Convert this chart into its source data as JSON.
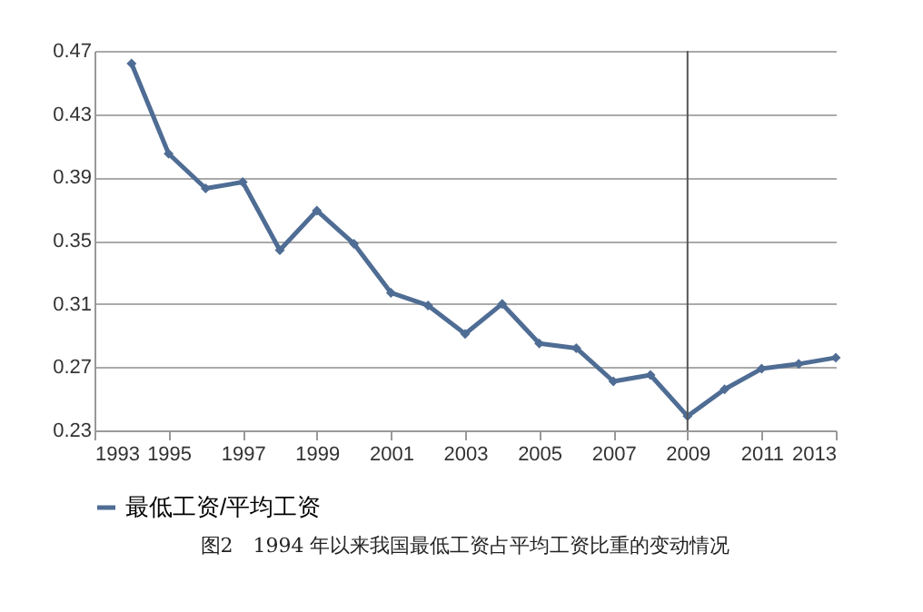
{
  "chart_data": {
    "type": "line",
    "x": [
      1994,
      1995,
      1996,
      1997,
      1998,
      1999,
      2000,
      2001,
      2002,
      2003,
      2004,
      2005,
      2006,
      2007,
      2008,
      2009,
      2010,
      2011,
      2012,
      2013
    ],
    "series": [
      {
        "name": "最低工资/平均工资",
        "color": "#4f6d94",
        "values": [
          0.462,
          0.405,
          0.383,
          0.387,
          0.344,
          0.369,
          0.348,
          0.317,
          0.309,
          0.291,
          0.31,
          0.285,
          0.282,
          0.261,
          0.265,
          0.239,
          0.256,
          0.269,
          0.272,
          0.276
        ]
      }
    ],
    "xlim": [
      1993,
      2013
    ],
    "xticks": [
      1993,
      1995,
      1997,
      1999,
      2001,
      2003,
      2005,
      2007,
      2009,
      2011,
      2013
    ],
    "ylim": [
      0.23,
      0.47
    ],
    "yticks": [
      0.23,
      0.27,
      0.31,
      0.35,
      0.39,
      0.43,
      0.47
    ],
    "grid": "y",
    "legend": "bottom",
    "marker": "diamond",
    "line_style": "solid",
    "ref_lines": [
      {
        "axis": "x",
        "value": 2009,
        "color": "#555555"
      }
    ],
    "annotations": [
      "图2　1994 年以来我国最低工资占平均工资比重的变动情况"
    ]
  }
}
